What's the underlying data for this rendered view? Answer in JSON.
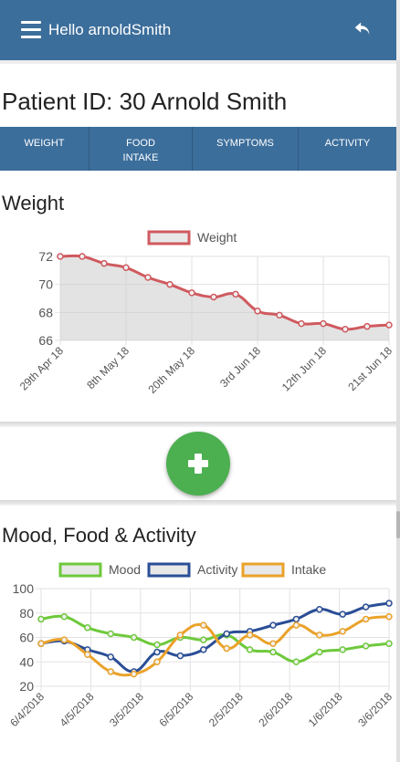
{
  "header": {
    "greeting": "Hello arnoldSmith"
  },
  "patient": {
    "title": "Patient ID: 30 Arnold Smith"
  },
  "tabs": [
    {
      "line1": "WEIGHT",
      "line2": ""
    },
    {
      "line1": "FOOD",
      "line2": "INTAKE"
    },
    {
      "line1": "SYMPTOMS",
      "line2": ""
    },
    {
      "line1": "ACTIVITY",
      "line2": ""
    }
  ],
  "weight_card": {
    "title": "Weight"
  },
  "mood_card": {
    "title": "Mood, Food & Activity"
  },
  "colors": {
    "header": "#3c6e9b",
    "weight": "#d05a5f",
    "mood": "#6ec93b",
    "activity": "#2a4e96",
    "intake": "#eaa22a",
    "fab": "#4caf50"
  },
  "chart_data": [
    {
      "type": "area",
      "legend": [
        "Weight"
      ],
      "x_ticks": [
        "29th Apr 18",
        "8th May 18",
        "20th May 18",
        "3rd Jun 18",
        "12th Jun 18",
        "21st Jun 18"
      ],
      "y_ticks": [
        "72",
        "70",
        "68",
        "66"
      ],
      "ylim": [
        66,
        72
      ],
      "series": [
        {
          "name": "Weight",
          "values": [
            72,
            72,
            71.5,
            71.2,
            70.5,
            70,
            69.4,
            69.1,
            69.3,
            68.1,
            67.8,
            67.2,
            67.2,
            66.8,
            67,
            67.1
          ]
        }
      ]
    },
    {
      "type": "line",
      "legend": [
        "Mood",
        "Activity",
        "Intake"
      ],
      "x_ticks": [
        "6/4/2018",
        "4/5/2018",
        "3/5/2018",
        "6/5/2018",
        "2/5/2018",
        "2/6/2018",
        "1/6/2018",
        "3/6/2018"
      ],
      "y_ticks": [
        "100",
        "80",
        "60",
        "40",
        "20"
      ],
      "ylim": [
        20,
        100
      ],
      "series": [
        {
          "name": "Mood",
          "values": [
            75,
            77,
            68,
            63,
            60,
            54,
            60,
            58,
            62,
            50,
            48,
            40,
            48,
            50,
            53,
            55
          ]
        },
        {
          "name": "Activity",
          "values": [
            55,
            57,
            50,
            44,
            32,
            48,
            45,
            50,
            63,
            65,
            70,
            75,
            83,
            79,
            85,
            88
          ]
        },
        {
          "name": "Intake",
          "values": [
            55,
            58,
            46,
            32,
            30,
            40,
            62,
            70,
            51,
            62,
            55,
            70,
            62,
            65,
            75,
            77
          ]
        }
      ]
    }
  ]
}
